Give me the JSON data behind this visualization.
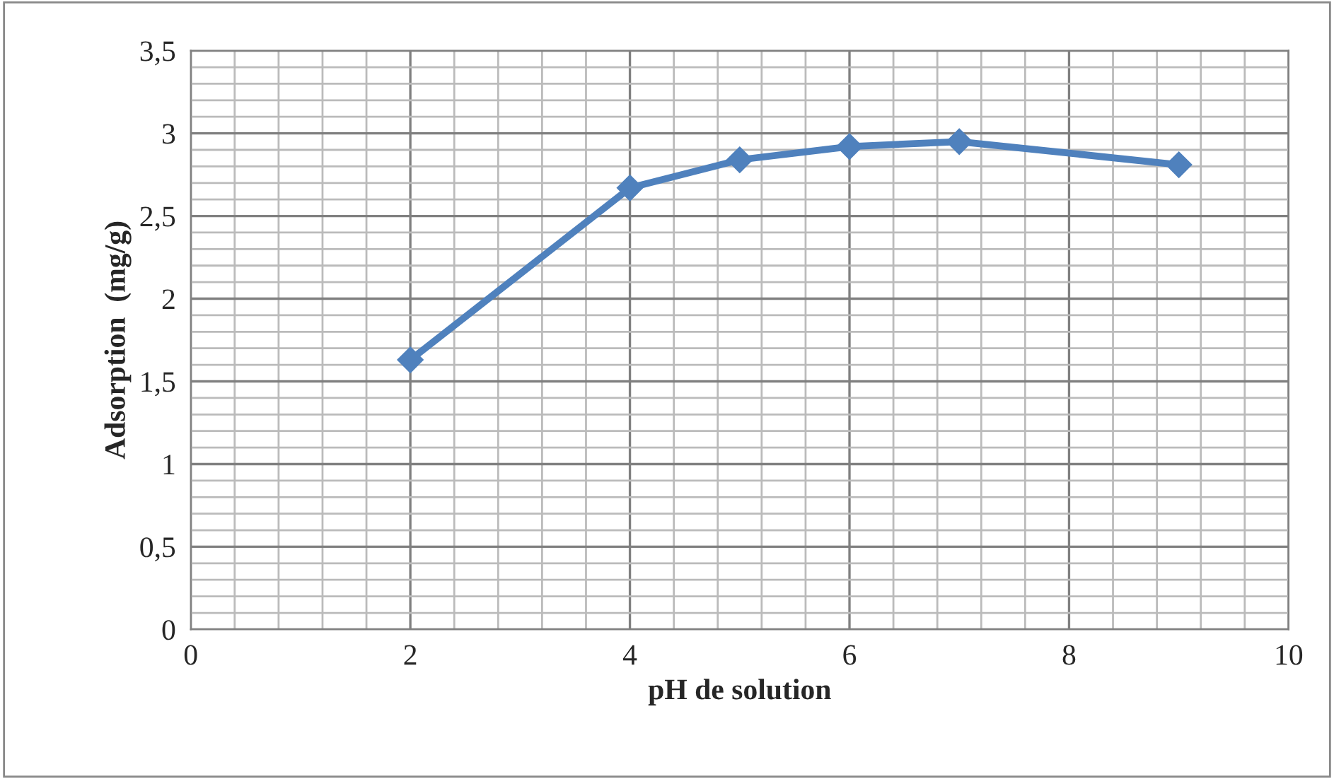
{
  "chart_data": {
    "type": "line",
    "xlabel": "pH de solution",
    "ylabel": "Adsorption  (mg/g)",
    "x": [
      2,
      4,
      5,
      6,
      7,
      9
    ],
    "series": [
      {
        "color": "#4f81bd",
        "values": [
          1.63,
          2.67,
          2.84,
          2.92,
          2.95,
          2.81
        ]
      }
    ],
    "xlim": [
      0,
      10
    ],
    "xticks": [
      0,
      2,
      4,
      6,
      8,
      10
    ],
    "ylim": [
      0,
      3.5
    ],
    "yticks": [
      {
        "value": 0,
        "label": "0"
      },
      {
        "value": 0.5,
        "label": "0,5"
      },
      {
        "value": 1,
        "label": "1"
      },
      {
        "value": 1.5,
        "label": "1,5"
      },
      {
        "value": 2,
        "label": "2"
      },
      {
        "value": 2.5,
        "label": "2,5"
      },
      {
        "value": 3,
        "label": "3"
      },
      {
        "value": 3.5,
        "label": "3,5"
      }
    ],
    "grid": true,
    "marker": "diamond",
    "line_style": "solid"
  }
}
